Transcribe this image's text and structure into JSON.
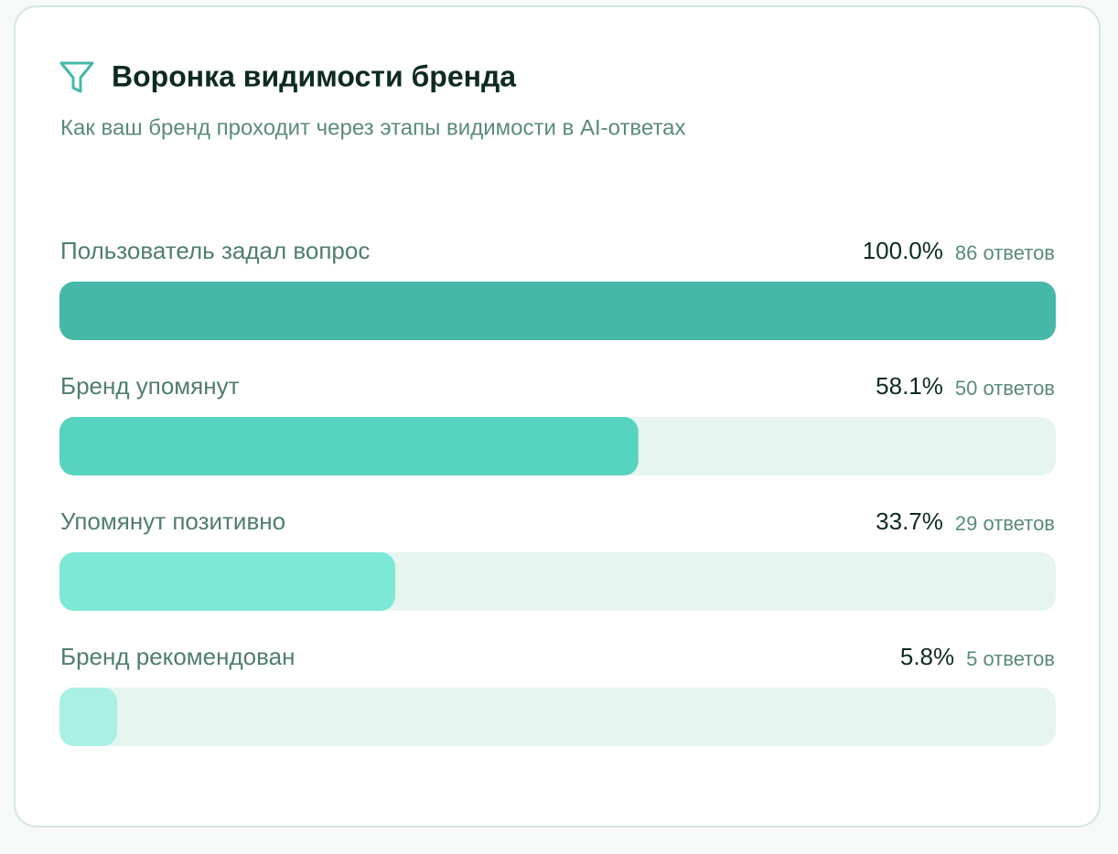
{
  "chart_data": {
    "type": "funnel",
    "title": "Воронка видимости бренда",
    "subtitle": "Как ваш бренд проходит через этапы видимости в AI-ответах",
    "categories": [
      "Пользователь задал вопрос",
      "Бренд упомянут",
      "Упомянут позитивно",
      "Бренд рекомендован"
    ],
    "values": [
      100,
      58.1,
      33.7,
      5.8
    ],
    "value_labels": [
      "100.0%",
      "58.1%",
      "33.7%",
      "5.8%"
    ],
    "count_labels": [
      "86 ответов",
      "50 ответов",
      "29 ответов",
      "5 ответов"
    ],
    "colors": [
      "#45b8a8",
      "#56d4c0",
      "#7de8d6",
      "#aaf0e4"
    ],
    "track_color": "#e6f5f0",
    "xlim": [
      0,
      100
    ]
  }
}
